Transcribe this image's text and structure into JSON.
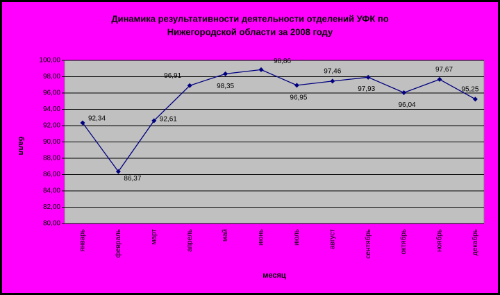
{
  "chart_data": {
    "type": "line",
    "title": [
      "Динамика результативности деятельности отделений УФК по",
      "Нижегородской области за 2008 году"
    ],
    "x_label": "месяц",
    "y_label": "балл",
    "categories": [
      "январь",
      "февраль",
      "март",
      "апрель",
      "май",
      "июнь",
      "июль",
      "август",
      "сентябрь",
      "октябрь",
      "ноябрь",
      "декабрь"
    ],
    "values": [
      92.34,
      86.37,
      92.61,
      96.91,
      98.35,
      98.86,
      96.95,
      97.46,
      97.93,
      96.04,
      97.67,
      95.25
    ],
    "value_labels": [
      "92,34",
      "86,37",
      "92,61",
      "96,91",
      "98,35",
      "98,86",
      "96,95",
      "97,46",
      "97,93",
      "96,04",
      "97,67",
      "95,25"
    ],
    "color": "#000080",
    "ylim": [
      80,
      100
    ],
    "yticks": [
      {
        "value": 80,
        "label": "80,00"
      },
      {
        "value": 82,
        "label": "82,00"
      },
      {
        "value": 84,
        "label": "84,00"
      },
      {
        "value": 86,
        "label": "86,00"
      },
      {
        "value": 88,
        "label": "88,00"
      },
      {
        "value": 90,
        "label": "90,00"
      },
      {
        "value": 92,
        "label": "92,00"
      },
      {
        "value": 94,
        "label": "94,00"
      },
      {
        "value": 96,
        "label": "96,00"
      },
      {
        "value": 98,
        "label": "98,00"
      },
      {
        "value": 100,
        "label": "100,00"
      }
    ],
    "grid": true
  }
}
